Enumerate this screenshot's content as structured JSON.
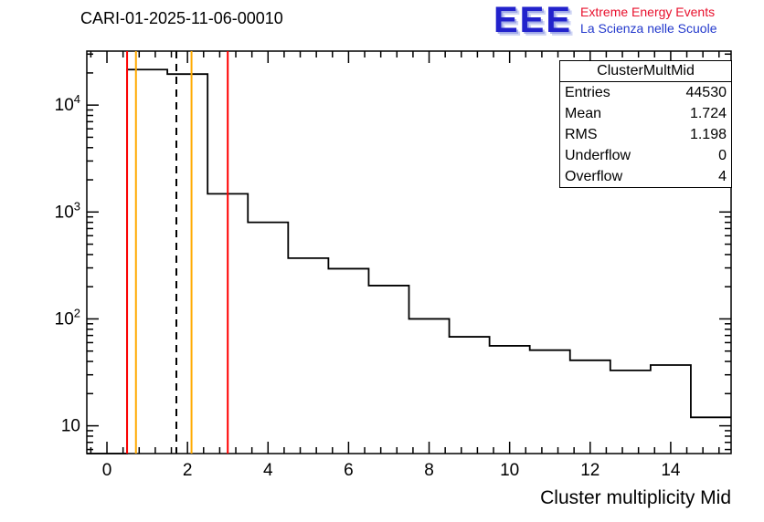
{
  "logo": {
    "eee": "EEE",
    "line1": "Extreme Energy Events",
    "line2": "La Scienza nelle Scuole",
    "eee_color": "#2222cc",
    "line1_color": "#e8112d",
    "line2_color": "#2238cc"
  },
  "stats": {
    "header": "ClusterMultMid",
    "rows": [
      {
        "label": "Entries",
        "value": "44530"
      },
      {
        "label": "Mean",
        "value": "1.724"
      },
      {
        "label": "RMS",
        "value": "1.198"
      },
      {
        "label": "Underflow",
        "value": "0"
      },
      {
        "label": "Overflow",
        "value": "4"
      }
    ]
  },
  "chart_data": {
    "type": "bar",
    "title": "CARI-01-2025-11-06-00010",
    "xlabel": "Cluster multiplicity Mid",
    "ylabel": "",
    "y_scale": "log",
    "grid": false,
    "x_range": [
      -0.5,
      15.5
    ],
    "y_range": [
      5.5,
      32000
    ],
    "bin_edges": [
      -0.5,
      0.5,
      1.5,
      2.5,
      3.5,
      4.5,
      5.5,
      6.5,
      7.5,
      8.5,
      9.5,
      10.5,
      11.5,
      12.5,
      13.5,
      14.5,
      15.5
    ],
    "counts": [
      0,
      21500,
      19500,
      1480,
      800,
      370,
      295,
      205,
      100,
      68,
      56,
      51,
      41,
      33,
      37,
      12
    ],
    "x_ticks": [
      0,
      2,
      4,
      6,
      8,
      10,
      12,
      14
    ],
    "x_minor_step": 0.4,
    "y_ticks": [
      {
        "value": 10,
        "base": "10",
        "exp": ""
      },
      {
        "value": 100,
        "base": "10",
        "exp": "2"
      },
      {
        "value": 1000,
        "base": "10",
        "exp": "3"
      },
      {
        "value": 10000,
        "base": "10",
        "exp": "4"
      }
    ],
    "line_color": "#000000",
    "markers": [
      {
        "x": 0.5,
        "color": "#ff0000",
        "style": "solid",
        "name": "red-cut-low-line"
      },
      {
        "x": 0.72,
        "color": "#ffaa00",
        "style": "solid",
        "name": "orange-cut-low-line"
      },
      {
        "x": 1.724,
        "color": "#000000",
        "style": "dashed",
        "name": "mean-dashed-line"
      },
      {
        "x": 2.1,
        "color": "#ffaa00",
        "style": "solid",
        "name": "orange-cut-high-line"
      },
      {
        "x": 3.0,
        "color": "#ff0000",
        "style": "solid",
        "name": "red-cut-high-line"
      }
    ]
  }
}
